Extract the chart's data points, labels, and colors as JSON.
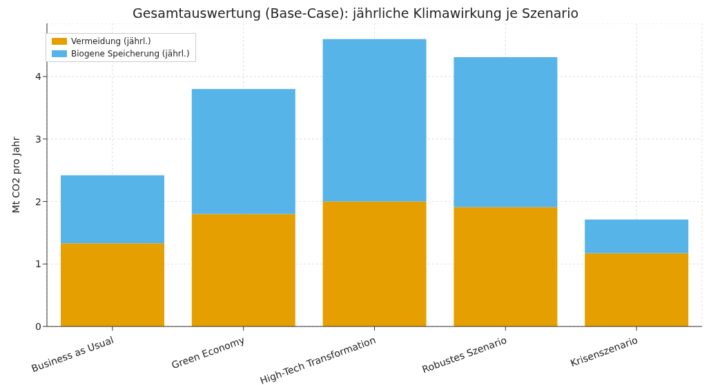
{
  "chart_data": {
    "type": "bar",
    "title": "Gesamtauswertung (Base-Case): jährliche Klimawirkung je Szenario",
    "ylabel": "Mt CO2 pro Jahr",
    "categories": [
      "Business as Usual",
      "Green Economy",
      "High-Tech Transformation",
      "Robustes Szenario",
      "Krisenszenario"
    ],
    "series": [
      {
        "name": "Vermeidung (jährl.)",
        "color": "#e69f00",
        "values": [
          1.33,
          1.8,
          2.0,
          1.91,
          1.17
        ]
      },
      {
        "name": "Biogene Speicherung (jährl.)",
        "color": "#56b4e9",
        "values": [
          1.09,
          2.0,
          2.6,
          2.4,
          0.54
        ]
      }
    ],
    "stacked": true,
    "ylim": [
      0,
      4.85
    ],
    "yticks": [
      0,
      1,
      2,
      3,
      4
    ],
    "grid": true,
    "legend": "top left"
  }
}
